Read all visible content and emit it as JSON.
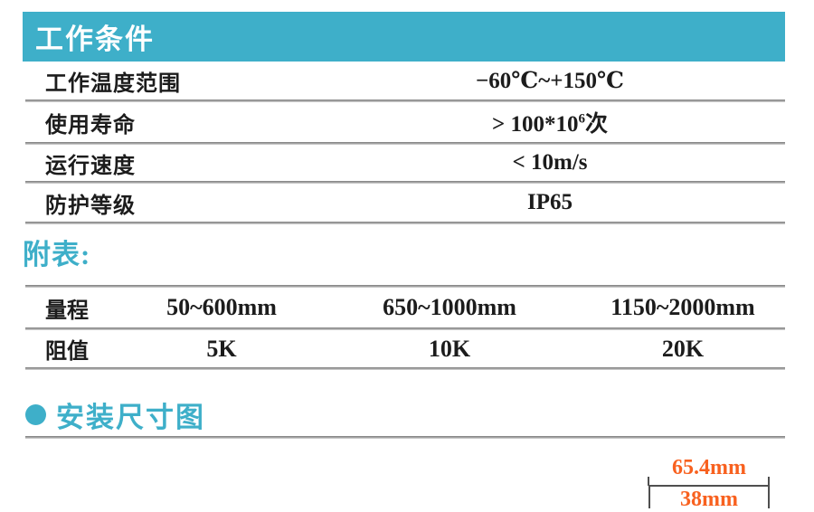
{
  "accent_color": "#3EAFC9",
  "dimension_color": "#F8611F",
  "working_conditions": {
    "title": "工作条件",
    "rows": [
      {
        "label": "工作温度范围",
        "value": "−60℃~+150℃"
      },
      {
        "label": "使用寿命",
        "value_prefix": "> 100*10",
        "value_sup": "6",
        "value_suffix": "次"
      },
      {
        "label": "运行速度",
        "value": "< 10m/s"
      },
      {
        "label": "防护等级",
        "value": "IP65"
      }
    ]
  },
  "appendix": {
    "heading": "附表:",
    "table": {
      "rows": [
        {
          "label": "量程",
          "values": [
            "50~600mm",
            "650~1000mm",
            "1150~2000mm"
          ]
        },
        {
          "label": "阻值",
          "values": [
            "5K",
            "10K",
            "20K"
          ]
        }
      ]
    }
  },
  "installation": {
    "heading": "安装尺寸图",
    "drawing": {
      "width_label": "65.4mm",
      "inner_label": "38mm"
    }
  }
}
